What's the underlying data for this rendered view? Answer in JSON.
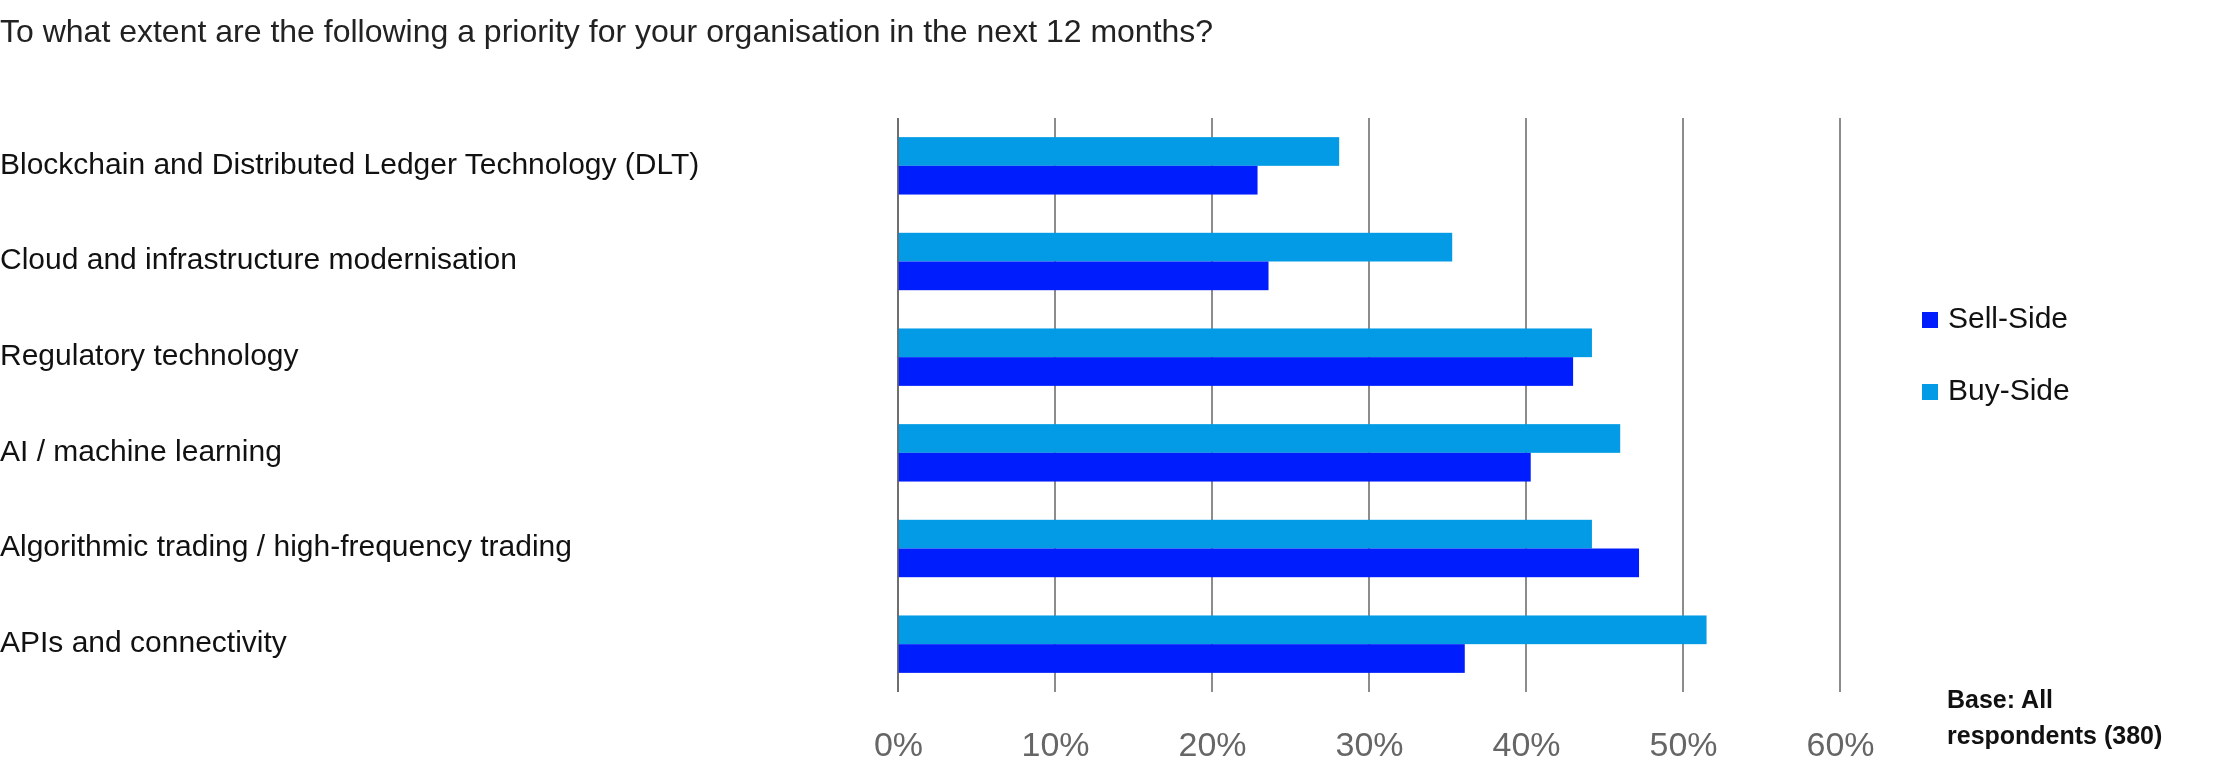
{
  "chart_data": {
    "type": "bar",
    "orientation": "horizontal",
    "title": "To what extent are the following a priority for your organisation in the next 12 months?",
    "categories": [
      "Blockchain and Distributed Ledger Technology (DLT)",
      "Cloud and infrastructure modernisation",
      "Regulatory technology",
      "AI / machine learning",
      "Algorithmic trading / high-frequency trading",
      "APIs and connectivity"
    ],
    "series": [
      {
        "name": "Buy-Side",
        "color": "#039be5",
        "values": [
          28.1,
          35.3,
          44.2,
          46.0,
          44.2,
          51.5
        ]
      },
      {
        "name": "Sell-Side",
        "color": "#001dfe",
        "values": [
          22.9,
          23.6,
          43.0,
          40.3,
          47.2,
          36.1
        ]
      }
    ],
    "xlim": [
      0,
      60
    ],
    "xticks": [
      {
        "value": 0,
        "label": "0%"
      },
      {
        "value": 10,
        "label": "10%"
      },
      {
        "value": 20,
        "label": "20%"
      },
      {
        "value": 30,
        "label": "30%"
      },
      {
        "value": 40,
        "label": "40%"
      },
      {
        "value": 50,
        "label": "50%"
      },
      {
        "value": 60,
        "label": "60%"
      }
    ],
    "grid": "x",
    "legend": "right",
    "annotations": [
      "Base: All respondents (380)"
    ]
  }
}
